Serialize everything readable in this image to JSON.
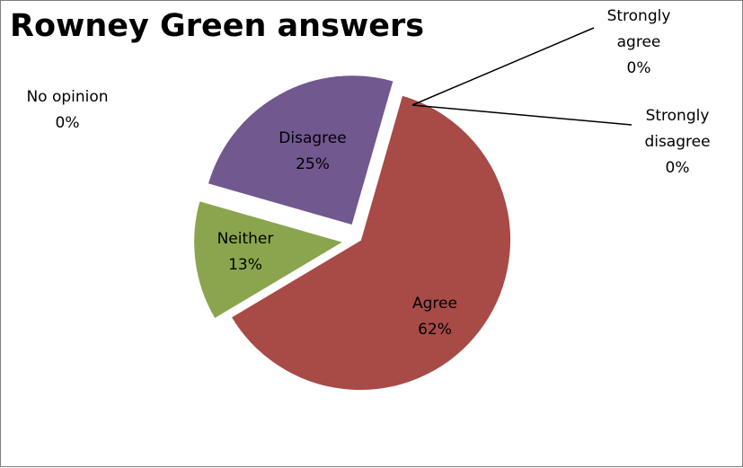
{
  "chart_data": {
    "type": "pie",
    "title": "Rowney Green answers",
    "slices": [
      {
        "category": "Strongly agree",
        "value": 0,
        "label": "0%",
        "color": "#4f81bd"
      },
      {
        "category": "Agree",
        "value": 62,
        "label": "62%",
        "color": "#a84a46"
      },
      {
        "category": "Neither",
        "value": 13,
        "label": "13%",
        "color": "#8aa54d"
      },
      {
        "category": "Disagree",
        "value": 25,
        "label": "25%",
        "color": "#71588f"
      },
      {
        "category": "Strongly disagree",
        "value": 0,
        "label": "0%",
        "color": "#4bacc6"
      },
      {
        "category": "No opinion",
        "value": 0,
        "label": "0%",
        "color": "#f79646"
      }
    ],
    "legend": "none",
    "data_labels": "category and percentage"
  }
}
